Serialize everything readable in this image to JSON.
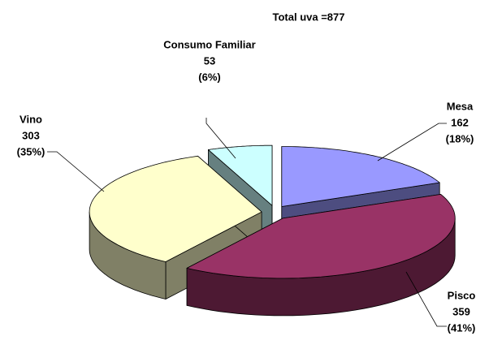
{
  "chart_data": {
    "type": "pie3d",
    "title": "Total uva =877",
    "categories": [
      "Mesa",
      "Pisco",
      "Vino",
      "Consumo Familiar"
    ],
    "values": [
      162,
      359,
      303,
      53
    ],
    "percent_labels": [
      "(18%)",
      "(41%)",
      "(35%)",
      "(6%)"
    ],
    "colors": [
      "#9999ff",
      "#993366",
      "#ffffcc",
      "#ccffff"
    ],
    "side_colors": [
      "#4d4d80",
      "#4d1933",
      "#808066",
      "#668080"
    ]
  }
}
